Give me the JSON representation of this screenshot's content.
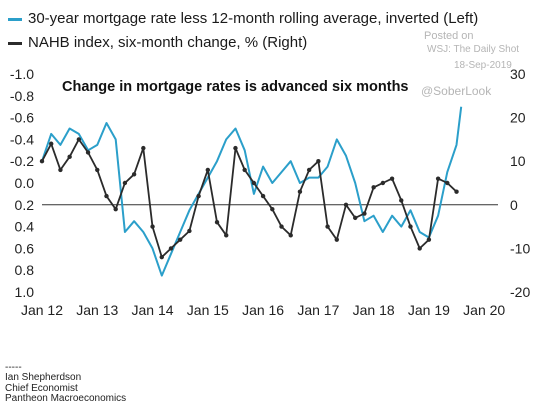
{
  "legend": {
    "series1": "30-year mortgage rate less 12-month rolling average, inverted (Left)",
    "series2": "NAHB index, six-month change, % (Right)"
  },
  "watermark": {
    "posted": "Posted on",
    "source": "WSJ: The Daily Shot",
    "date": "18-Sep-2019",
    "handle": "@SoberLook"
  },
  "footer": {
    "dash": "-----",
    "name": "Ian Shepherdson",
    "title": "Chief Economist",
    "org": "Pantheon Macroeconomics"
  },
  "colors": {
    "mortgage": "#2b9fca",
    "nahb": "#2b2b2b",
    "zero_line": "#333333",
    "grid": "#bfbfbf"
  },
  "chart_data": {
    "type": "line",
    "annotation": "Change in mortgage rates is advanced six months",
    "x_ticks": [
      "Jan 12",
      "Jan 13",
      "Jan 14",
      "Jan 15",
      "Jan 16",
      "Jan 17",
      "Jan 18",
      "Jan 19",
      "Jan 20"
    ],
    "xlim": [
      "2012-01",
      "2020-04"
    ],
    "y_left": {
      "inverted": true,
      "ylim": [
        -1.0,
        1.0
      ],
      "ticks": [
        -1.0,
        -0.8,
        -0.6,
        -0.4,
        -0.2,
        0.0,
        0.2,
        0.4,
        0.6,
        0.8,
        1.0
      ],
      "tick_labels": [
        "-1.0",
        "-0.8",
        "-0.6",
        "-0.4",
        "-0.2",
        "0.0",
        "0.2",
        "0.4",
        "0.6",
        "0.8",
        "1.0"
      ]
    },
    "y_right": {
      "ylim": [
        -20,
        30
      ],
      "ticks": [
        30,
        20,
        10,
        0,
        -10,
        -20
      ],
      "tick_labels": [
        "30",
        "20",
        "10",
        "0",
        "-10",
        "-20"
      ]
    },
    "grid": "horizontal zero line only",
    "series": [
      {
        "name": "30-year mortgage rate less 12-month rolling average, inverted (Left)",
        "axis": "left",
        "x": [
          "2012-01",
          "2012-03",
          "2012-05",
          "2012-07",
          "2012-09",
          "2012-11",
          "2013-01",
          "2013-03",
          "2013-05",
          "2013-07",
          "2013-09",
          "2013-11",
          "2014-01",
          "2014-03",
          "2014-05",
          "2014-07",
          "2014-09",
          "2014-11",
          "2015-01",
          "2015-03",
          "2015-05",
          "2015-07",
          "2015-09",
          "2015-11",
          "2016-01",
          "2016-03",
          "2016-05",
          "2016-07",
          "2016-09",
          "2016-11",
          "2017-01",
          "2017-03",
          "2017-05",
          "2017-07",
          "2017-09",
          "2017-11",
          "2018-01",
          "2018-03",
          "2018-05",
          "2018-07",
          "2018-09",
          "2018-11",
          "2019-01",
          "2019-03",
          "2019-05",
          "2019-07",
          "2019-08"
        ],
        "values": [
          -0.2,
          -0.45,
          -0.35,
          -0.5,
          -0.45,
          -0.3,
          -0.35,
          -0.55,
          -0.4,
          0.45,
          0.35,
          0.45,
          0.6,
          0.85,
          0.65,
          0.45,
          0.25,
          0.1,
          -0.05,
          -0.2,
          -0.4,
          -0.5,
          -0.3,
          0.1,
          -0.15,
          0.0,
          -0.1,
          -0.2,
          0.0,
          -0.05,
          -0.05,
          -0.15,
          -0.4,
          -0.25,
          0.0,
          0.35,
          0.3,
          0.45,
          0.3,
          0.4,
          0.25,
          0.45,
          0.5,
          0.3,
          -0.1,
          -0.35,
          -0.7
        ]
      },
      {
        "name": "NAHB index, six-month change, % (Right)",
        "axis": "right",
        "x": [
          "2012-01",
          "2012-03",
          "2012-05",
          "2012-07",
          "2012-09",
          "2012-11",
          "2013-01",
          "2013-03",
          "2013-05",
          "2013-07",
          "2013-09",
          "2013-11",
          "2014-01",
          "2014-03",
          "2014-05",
          "2014-07",
          "2014-09",
          "2014-11",
          "2015-01",
          "2015-03",
          "2015-05",
          "2015-07",
          "2015-09",
          "2015-11",
          "2016-01",
          "2016-03",
          "2016-05",
          "2016-07",
          "2016-09",
          "2016-11",
          "2017-01",
          "2017-03",
          "2017-05",
          "2017-07",
          "2017-09",
          "2017-11",
          "2018-01",
          "2018-03",
          "2018-05",
          "2018-07",
          "2018-09",
          "2018-11",
          "2019-01",
          "2019-03",
          "2019-05",
          "2019-07"
        ],
        "values": [
          10,
          14,
          8,
          11,
          15,
          12,
          8,
          2,
          -1,
          5,
          7,
          13,
          -5,
          -12,
          -10,
          -8,
          -6,
          2,
          8,
          -4,
          -7,
          13,
          8,
          5,
          2,
          -1,
          -5,
          -7,
          3,
          8,
          10,
          -5,
          -8,
          0,
          -3,
          -2,
          4,
          5,
          6,
          1,
          -5,
          -10,
          -8,
          6,
          5,
          3
        ]
      }
    ]
  }
}
